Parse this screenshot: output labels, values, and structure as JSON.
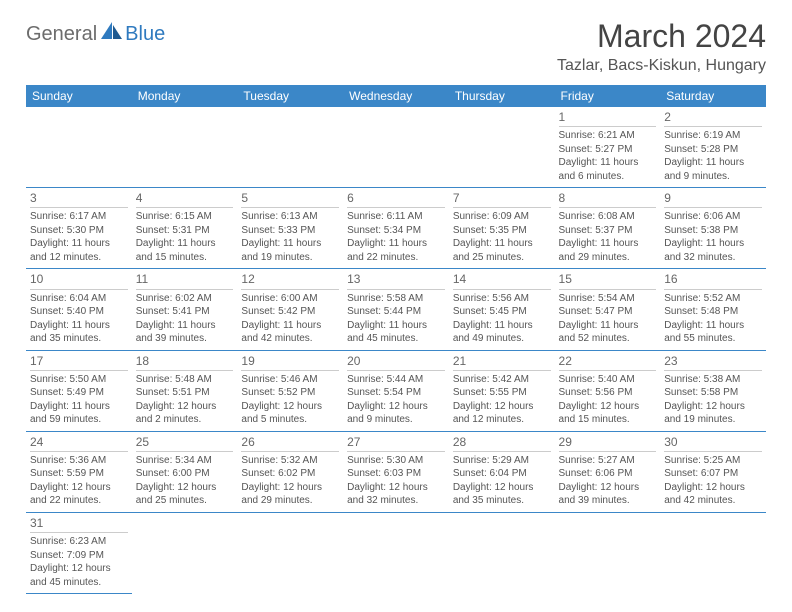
{
  "logo": {
    "part1": "General",
    "part2": "Blue"
  },
  "title": "March 2024",
  "location": "Tazlar, Bacs-Kiskun, Hungary",
  "colors": {
    "header_bg": "#3b87c8",
    "header_fg": "#ffffff",
    "border": "#3b87c8",
    "daynum_border": "#cccccc",
    "text": "#555555",
    "logo_gray": "#6c6c6c",
    "logo_blue": "#2f7abf"
  },
  "weekdays": [
    "Sunday",
    "Monday",
    "Tuesday",
    "Wednesday",
    "Thursday",
    "Friday",
    "Saturday"
  ],
  "weeks": [
    [
      null,
      null,
      null,
      null,
      null,
      {
        "n": "1",
        "sr": "6:21 AM",
        "ss": "5:27 PM",
        "dl": "11 hours and 6 minutes."
      },
      {
        "n": "2",
        "sr": "6:19 AM",
        "ss": "5:28 PM",
        "dl": "11 hours and 9 minutes."
      }
    ],
    [
      {
        "n": "3",
        "sr": "6:17 AM",
        "ss": "5:30 PM",
        "dl": "11 hours and 12 minutes."
      },
      {
        "n": "4",
        "sr": "6:15 AM",
        "ss": "5:31 PM",
        "dl": "11 hours and 15 minutes."
      },
      {
        "n": "5",
        "sr": "6:13 AM",
        "ss": "5:33 PM",
        "dl": "11 hours and 19 minutes."
      },
      {
        "n": "6",
        "sr": "6:11 AM",
        "ss": "5:34 PM",
        "dl": "11 hours and 22 minutes."
      },
      {
        "n": "7",
        "sr": "6:09 AM",
        "ss": "5:35 PM",
        "dl": "11 hours and 25 minutes."
      },
      {
        "n": "8",
        "sr": "6:08 AM",
        "ss": "5:37 PM",
        "dl": "11 hours and 29 minutes."
      },
      {
        "n": "9",
        "sr": "6:06 AM",
        "ss": "5:38 PM",
        "dl": "11 hours and 32 minutes."
      }
    ],
    [
      {
        "n": "10",
        "sr": "6:04 AM",
        "ss": "5:40 PM",
        "dl": "11 hours and 35 minutes."
      },
      {
        "n": "11",
        "sr": "6:02 AM",
        "ss": "5:41 PM",
        "dl": "11 hours and 39 minutes."
      },
      {
        "n": "12",
        "sr": "6:00 AM",
        "ss": "5:42 PM",
        "dl": "11 hours and 42 minutes."
      },
      {
        "n": "13",
        "sr": "5:58 AM",
        "ss": "5:44 PM",
        "dl": "11 hours and 45 minutes."
      },
      {
        "n": "14",
        "sr": "5:56 AM",
        "ss": "5:45 PM",
        "dl": "11 hours and 49 minutes."
      },
      {
        "n": "15",
        "sr": "5:54 AM",
        "ss": "5:47 PM",
        "dl": "11 hours and 52 minutes."
      },
      {
        "n": "16",
        "sr": "5:52 AM",
        "ss": "5:48 PM",
        "dl": "11 hours and 55 minutes."
      }
    ],
    [
      {
        "n": "17",
        "sr": "5:50 AM",
        "ss": "5:49 PM",
        "dl": "11 hours and 59 minutes."
      },
      {
        "n": "18",
        "sr": "5:48 AM",
        "ss": "5:51 PM",
        "dl": "12 hours and 2 minutes."
      },
      {
        "n": "19",
        "sr": "5:46 AM",
        "ss": "5:52 PM",
        "dl": "12 hours and 5 minutes."
      },
      {
        "n": "20",
        "sr": "5:44 AM",
        "ss": "5:54 PM",
        "dl": "12 hours and 9 minutes."
      },
      {
        "n": "21",
        "sr": "5:42 AM",
        "ss": "5:55 PM",
        "dl": "12 hours and 12 minutes."
      },
      {
        "n": "22",
        "sr": "5:40 AM",
        "ss": "5:56 PM",
        "dl": "12 hours and 15 minutes."
      },
      {
        "n": "23",
        "sr": "5:38 AM",
        "ss": "5:58 PM",
        "dl": "12 hours and 19 minutes."
      }
    ],
    [
      {
        "n": "24",
        "sr": "5:36 AM",
        "ss": "5:59 PM",
        "dl": "12 hours and 22 minutes."
      },
      {
        "n": "25",
        "sr": "5:34 AM",
        "ss": "6:00 PM",
        "dl": "12 hours and 25 minutes."
      },
      {
        "n": "26",
        "sr": "5:32 AM",
        "ss": "6:02 PM",
        "dl": "12 hours and 29 minutes."
      },
      {
        "n": "27",
        "sr": "5:30 AM",
        "ss": "6:03 PM",
        "dl": "12 hours and 32 minutes."
      },
      {
        "n": "28",
        "sr": "5:29 AM",
        "ss": "6:04 PM",
        "dl": "12 hours and 35 minutes."
      },
      {
        "n": "29",
        "sr": "5:27 AM",
        "ss": "6:06 PM",
        "dl": "12 hours and 39 minutes."
      },
      {
        "n": "30",
        "sr": "5:25 AM",
        "ss": "6:07 PM",
        "dl": "12 hours and 42 minutes."
      }
    ],
    [
      {
        "n": "31",
        "sr": "6:23 AM",
        "ss": "7:09 PM",
        "dl": "12 hours and 45 minutes."
      },
      null,
      null,
      null,
      null,
      null,
      null
    ]
  ],
  "labels": {
    "sunrise": "Sunrise: ",
    "sunset": "Sunset: ",
    "daylight": "Daylight: "
  }
}
